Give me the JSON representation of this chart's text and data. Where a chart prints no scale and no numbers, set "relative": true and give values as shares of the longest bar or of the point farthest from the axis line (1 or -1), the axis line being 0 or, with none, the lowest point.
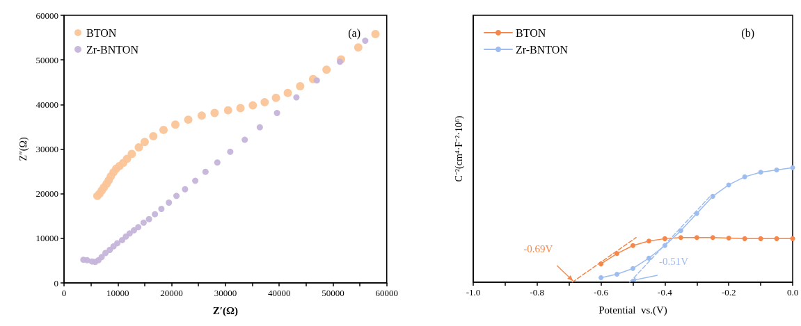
{
  "chart_data": [
    {
      "type": "scatter",
      "title": "(a)",
      "xlabel": "Z′(Ω)",
      "ylabel": "Z″(Ω)",
      "marker": "circle",
      "legend": "top left",
      "xlim": [
        0,
        60000
      ],
      "ylim": [
        0,
        60000
      ],
      "xticks": [
        0,
        {
          "value": 5000,
          "label": null
        },
        10000,
        {
          "value": 15000,
          "label": null
        },
        20000,
        {
          "value": 25000,
          "label": null
        },
        30000,
        {
          "value": 35000,
          "label": null
        },
        40000,
        {
          "value": 45000,
          "label": null
        },
        50000,
        {
          "value": 55000,
          "label": null
        },
        60000
      ],
      "yticks": [
        0,
        10000,
        20000,
        30000,
        40000,
        50000,
        60000
      ],
      "series": [
        {
          "name": "BTON",
          "color": "#fbc599",
          "x": [
            6200,
            6600,
            7000,
            7400,
            7900,
            8300,
            8700,
            9200,
            9700,
            10300,
            11000,
            11700,
            12600,
            13900,
            15000,
            16600,
            18500,
            20700,
            23100,
            25600,
            28000,
            30500,
            32800,
            35100,
            37300,
            39400,
            41600,
            43900,
            46300,
            48800,
            51500,
            54700,
            57900
          ],
          "values": [
            19500,
            20000,
            20700,
            21400,
            22200,
            23000,
            23900,
            24800,
            25600,
            26200,
            26900,
            27800,
            28900,
            30400,
            31600,
            32900,
            34300,
            35500,
            36600,
            37500,
            38100,
            38700,
            39200,
            39800,
            40500,
            41500,
            42600,
            44100,
            45700,
            47800,
            50100,
            52800,
            55800
          ]
        },
        {
          "name": "Zr-BNTON",
          "color": "#c5b4da",
          "x": [
            3600,
            4300,
            5200,
            5800,
            6400,
            7000,
            7700,
            8500,
            9200,
            9900,
            10800,
            11500,
            12200,
            13000,
            13800,
            14800,
            15800,
            16900,
            18100,
            19500,
            20900,
            22500,
            24400,
            26300,
            28500,
            30900,
            33600,
            36400,
            39600,
            43200,
            47000,
            51300,
            56000
          ],
          "values": [
            5200,
            5100,
            4800,
            4700,
            5100,
            5800,
            6700,
            7400,
            8200,
            8900,
            9600,
            10400,
            11100,
            11800,
            12500,
            13500,
            14300,
            15400,
            16600,
            18000,
            19500,
            21000,
            22900,
            24900,
            27000,
            29400,
            32100,
            34900,
            38100,
            41600,
            45400,
            49600,
            54300
          ]
        }
      ]
    },
    {
      "type": "line",
      "title": "(b)",
      "xlabel": "Potential  vs.(V)",
      "ylabel": "C⁻²(cm⁴·F⁻²·10⁶)",
      "marker": "circle",
      "legend": "top left",
      "relative": true,
      "xlim": [
        -1,
        0
      ],
      "xticks": [
        {
          "value": -1,
          "label": "-1.0"
        },
        {
          "value": -0.9,
          "label": null
        },
        {
          "value": -0.8,
          "label": "-0.8"
        },
        {
          "value": -0.7,
          "label": null
        },
        {
          "value": -0.6,
          "label": "-0.6"
        },
        {
          "value": -0.5,
          "label": null
        },
        {
          "value": -0.4,
          "label": "-0.4"
        },
        {
          "value": -0.3,
          "label": null
        },
        {
          "value": -0.2,
          "label": "-0.2"
        },
        {
          "value": -0.1,
          "label": null
        },
        {
          "value": 0,
          "label": "0.0"
        }
      ],
      "annotations": [
        {
          "text": "-0.69V",
          "x": -0.69,
          "y": 0
        },
        {
          "text": "-0.51V",
          "x": -0.51,
          "y": 0
        }
      ],
      "series": [
        {
          "name": "BTON",
          "color": "#f5874a",
          "x": [
            -0.6,
            -0.55,
            -0.5,
            -0.45,
            -0.4,
            -0.35,
            -0.3,
            -0.25,
            -0.2,
            -0.15,
            -0.1,
            -0.05,
            0
          ],
          "values": [
            0.16,
            0.25,
            0.32,
            0.36,
            0.38,
            0.39,
            0.39,
            0.39,
            0.385,
            0.38,
            0.38,
            0.38,
            0.38
          ]
        },
        {
          "name": "Zr-BNTON",
          "color": "#9dbcf0",
          "x": [
            -0.6,
            -0.55,
            -0.5,
            -0.45,
            -0.4,
            -0.35,
            -0.3,
            -0.25,
            -0.2,
            -0.15,
            -0.1,
            -0.05,
            0
          ],
          "values": [
            0.04,
            0.07,
            0.12,
            0.21,
            0.32,
            0.45,
            0.6,
            0.75,
            0.85,
            0.92,
            0.96,
            0.98,
            1
          ]
        },
        {
          "type": "line",
          "color": "#f5874a",
          "line_style": "dashed",
          "marker": "none",
          "x": [
            -0.69,
            -0.49
          ],
          "values": [
            0,
            0.39
          ]
        },
        {
          "type": "line",
          "color": "#9dbcf0",
          "line_style": "dashed",
          "marker": "none",
          "x": [
            -0.51,
            -0.26
          ],
          "values": [
            0,
            0.745
          ]
        }
      ]
    }
  ]
}
